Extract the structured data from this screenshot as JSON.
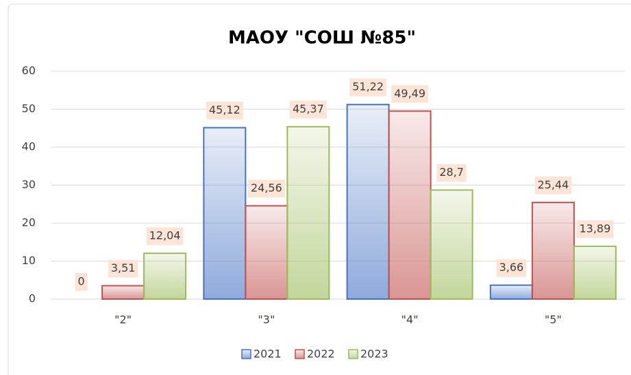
{
  "chart_data": {
    "type": "bar",
    "title": "МАОУ \"СОШ №85\"",
    "categories": [
      "\"2\"",
      "\"3\"",
      "\"4\"",
      "\"5\""
    ],
    "series": [
      {
        "name": "2021",
        "color": "#4472c4",
        "values": [
          0,
          45.12,
          51.22,
          3.66
        ],
        "value_labels": [
          "0",
          "45,12",
          "51,22",
          "3,66"
        ]
      },
      {
        "name": "2022",
        "color": "#c0504d",
        "values": [
          3.51,
          24.56,
          49.49,
          25.44
        ],
        "value_labels": [
          "3,51",
          "24,56",
          "49,49",
          "25,44"
        ]
      },
      {
        "name": "2023",
        "color": "#9bbb59",
        "values": [
          12.04,
          45.37,
          28.7,
          13.89
        ],
        "value_labels": [
          "12,04",
          "45,37",
          "28,7",
          "13,89"
        ]
      }
    ],
    "ylim": [
      0,
      60
    ],
    "yticks": [
      0,
      10,
      20,
      30,
      40,
      50,
      60
    ],
    "grid": true,
    "legend": "bottom"
  }
}
